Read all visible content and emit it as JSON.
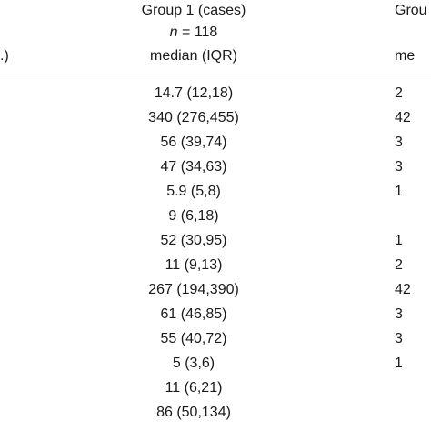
{
  "header": {
    "group1": {
      "title": "Group 1 (cases)",
      "n_label": "n",
      "n_value": "= 118",
      "stat": "median (IQR)"
    },
    "group2": {
      "title": "Grou",
      "stat": "me"
    },
    "first_col_fragment": ".)"
  },
  "rows": [
    {
      "g1": "14.7 (12,18)",
      "g2": "2"
    },
    {
      "g1": "340 (276,455)",
      "g2": "42"
    },
    {
      "g1": "56 (39,74)",
      "g2": "3"
    },
    {
      "g1": "47 (34,63)",
      "g2": "3"
    },
    {
      "g1": "5.9 (5,8)",
      "g2": "1"
    },
    {
      "g1": "9 (6,18)",
      "g2": ""
    },
    {
      "g1": "52 (30,95)",
      "g2": "1"
    },
    {
      "g1": "11 (9,13)",
      "g2": "2"
    },
    {
      "g1": "267 (194,390)",
      "g2": "42"
    },
    {
      "g1": "61 (46,85)",
      "g2": "3"
    },
    {
      "g1": "55 (40,72)",
      "g2": "3"
    },
    {
      "g1": "5 (3,6)",
      "g2": "1"
    },
    {
      "g1": "11 (6,21)",
      "g2": ""
    },
    {
      "g1": "86 (50,134)",
      "g2": ""
    }
  ]
}
